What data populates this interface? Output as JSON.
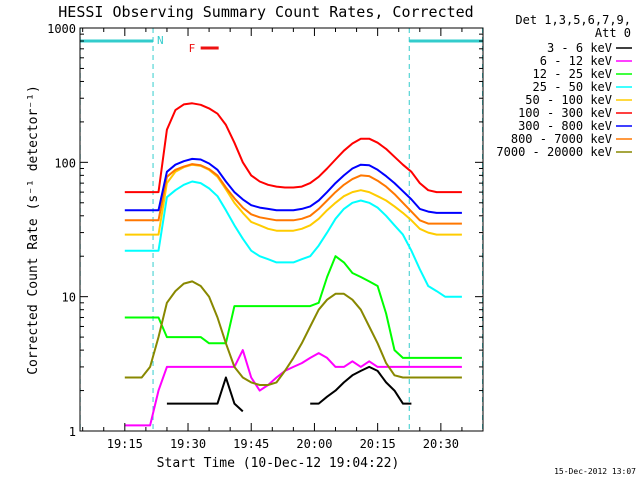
{
  "chart_data": {
    "type": "line",
    "title": "HESSI Observing Summary Count Rates, Corrected",
    "xlabel": "Start Time (10-Dec-12 19:04:22)",
    "ylabel": "Corrected Count Rate (s⁻¹ detector⁻¹)",
    "yscale": "log",
    "ylim": [
      1,
      1000
    ],
    "xlim": [
      "19:04:22",
      "20:40:00"
    ],
    "x_ticks": [
      "19:15",
      "19:30",
      "19:45",
      "20:00",
      "20:15",
      "20:30"
    ],
    "y_ticks": [
      "1",
      "10",
      "100",
      "1000"
    ],
    "legend_header": [
      "Det 1,3,5,6,7,9,",
      "Att 0"
    ],
    "legend_position": "right",
    "timestamp": "15-Dec-2012 13:07",
    "x_units": "minutes after 19:00",
    "night_intervals": [
      [
        4.4,
        21.7
      ],
      [
        82.5,
        99.9
      ]
    ],
    "annotations": [
      {
        "label": "N",
        "color": "#33cccc"
      },
      {
        "label": "F",
        "color": "#ee1111"
      }
    ],
    "x": [
      15,
      17,
      19,
      21,
      23,
      25,
      27,
      29,
      31,
      33,
      35,
      37,
      39,
      41,
      43,
      45,
      47,
      49,
      51,
      53,
      55,
      57,
      59,
      61,
      63,
      65,
      67,
      69,
      71,
      73,
      75,
      77,
      79,
      81,
      83,
      85,
      87,
      89,
      91,
      93,
      95
    ],
    "series": [
      {
        "name": "3 - 6 keV",
        "color": "#000000",
        "values": [
          null,
          null,
          null,
          null,
          null,
          1.6,
          1.6,
          1.6,
          1.6,
          1.6,
          1.6,
          1.6,
          2.5,
          1.6,
          1.4,
          null,
          null,
          null,
          null,
          null,
          null,
          null,
          1.6,
          1.6,
          1.8,
          2.0,
          2.3,
          2.6,
          2.8,
          3.0,
          2.8,
          2.3,
          2.0,
          1.6,
          1.6,
          null,
          null,
          null,
          null,
          null,
          null
        ]
      },
      {
        "name": "6 - 12 keV",
        "color": "#ff00ff",
        "values": [
          1.1,
          1.1,
          1.1,
          1.1,
          2.0,
          3.0,
          3.0,
          3.0,
          3.0,
          3.0,
          3.0,
          3.0,
          3.0,
          3.0,
          4.0,
          2.5,
          2.0,
          2.2,
          2.5,
          2.8,
          3.0,
          3.2,
          3.5,
          3.8,
          3.5,
          3.0,
          3.0,
          3.3,
          3.0,
          3.3,
          3.0,
          3.0,
          3.0,
          3.0,
          3.0,
          3.0,
          3.0,
          3.0,
          3.0,
          3.0,
          3.0
        ]
      },
      {
        "name": "12 - 25 keV",
        "color": "#00ff00",
        "values": [
          7.0,
          7.0,
          7.0,
          7.0,
          7.0,
          5.0,
          5.0,
          5.0,
          5.0,
          5.0,
          4.5,
          4.5,
          4.5,
          8.5,
          8.5,
          8.5,
          8.5,
          8.5,
          8.5,
          8.5,
          8.5,
          8.5,
          8.5,
          9.0,
          14.0,
          20.0,
          18.0,
          15.0,
          14.0,
          13.0,
          12.0,
          7.5,
          4.0,
          3.5,
          3.5,
          3.5,
          3.5,
          3.5,
          3.5,
          3.5,
          3.5
        ]
      },
      {
        "name": "25 - 50 keV",
        "color": "#00ffff",
        "values": [
          22,
          22,
          22,
          22,
          22,
          55,
          62,
          68,
          72,
          70,
          64,
          56,
          44,
          34,
          27,
          22,
          20,
          19,
          18,
          18,
          18,
          19,
          20,
          24,
          30,
          38,
          45,
          50,
          52,
          50,
          46,
          40,
          34,
          29,
          22,
          16,
          12,
          11,
          10,
          10,
          10
        ]
      },
      {
        "name": "50 - 100 keV",
        "color": "#ffcc00",
        "values": [
          29,
          29,
          29,
          29,
          29,
          70,
          85,
          92,
          96,
          94,
          88,
          78,
          63,
          50,
          42,
          36,
          34,
          32,
          31,
          31,
          31,
          32,
          34,
          38,
          44,
          50,
          56,
          60,
          62,
          60,
          56,
          52,
          47,
          42,
          37,
          32,
          30,
          29,
          29,
          29,
          29
        ]
      },
      {
        "name": "100 - 300 keV",
        "color": "#ff0000",
        "values": [
          60,
          60,
          60,
          60,
          60,
          175,
          245,
          270,
          275,
          268,
          252,
          230,
          190,
          140,
          100,
          80,
          72,
          68,
          66,
          65,
          65,
          66,
          70,
          78,
          90,
          105,
          122,
          138,
          150,
          150,
          140,
          126,
          110,
          96,
          85,
          70,
          62,
          60,
          60,
          60,
          60
        ]
      },
      {
        "name": "300 - 800 keV",
        "color": "#0000ff",
        "values": [
          44,
          44,
          44,
          44,
          44,
          85,
          96,
          102,
          106,
          105,
          98,
          88,
          72,
          60,
          53,
          48,
          46,
          45,
          44,
          44,
          44,
          45,
          47,
          52,
          60,
          70,
          80,
          90,
          96,
          95,
          88,
          79,
          70,
          61,
          53,
          45,
          43,
          42,
          42,
          42,
          42
        ]
      },
      {
        "name": "800 - 7000 keV",
        "color": "#ff7700",
        "values": [
          37,
          37,
          37,
          37,
          37,
          78,
          88,
          93,
          97,
          95,
          89,
          80,
          65,
          54,
          46,
          41,
          39,
          38,
          37,
          37,
          37,
          38,
          40,
          45,
          52,
          60,
          68,
          75,
          80,
          79,
          73,
          66,
          58,
          50,
          43,
          37,
          35,
          35,
          35,
          35,
          35
        ]
      },
      {
        "name": "7000 - 20000 keV",
        "color": "#888800",
        "values": [
          2.5,
          2.5,
          2.5,
          3.0,
          5.0,
          9.0,
          11.0,
          12.5,
          13.0,
          12.0,
          10.0,
          7.0,
          4.5,
          3.0,
          2.5,
          2.3,
          2.2,
          2.2,
          2.3,
          2.8,
          3.5,
          4.5,
          6.0,
          8.0,
          9.5,
          10.5,
          10.5,
          9.5,
          8.0,
          6.0,
          4.5,
          3.2,
          2.6,
          2.5,
          2.5,
          2.5,
          2.5,
          2.5,
          2.5,
          2.5,
          2.5
        ]
      }
    ]
  }
}
